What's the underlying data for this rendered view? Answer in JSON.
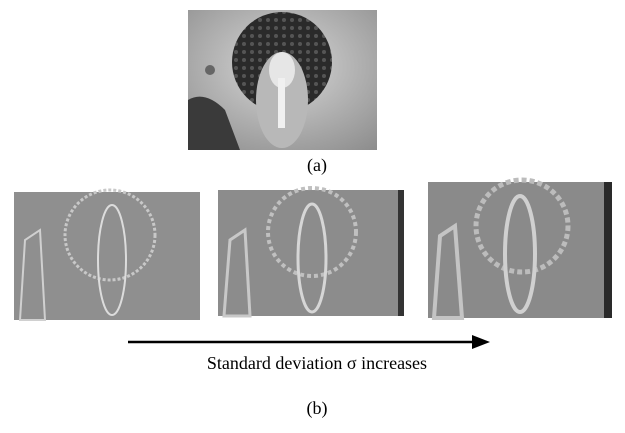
{
  "figure": {
    "panel_a_label": "(a)",
    "arrow_label": "Standard deviation σ increases",
    "panel_b_label": "(b)"
  }
}
